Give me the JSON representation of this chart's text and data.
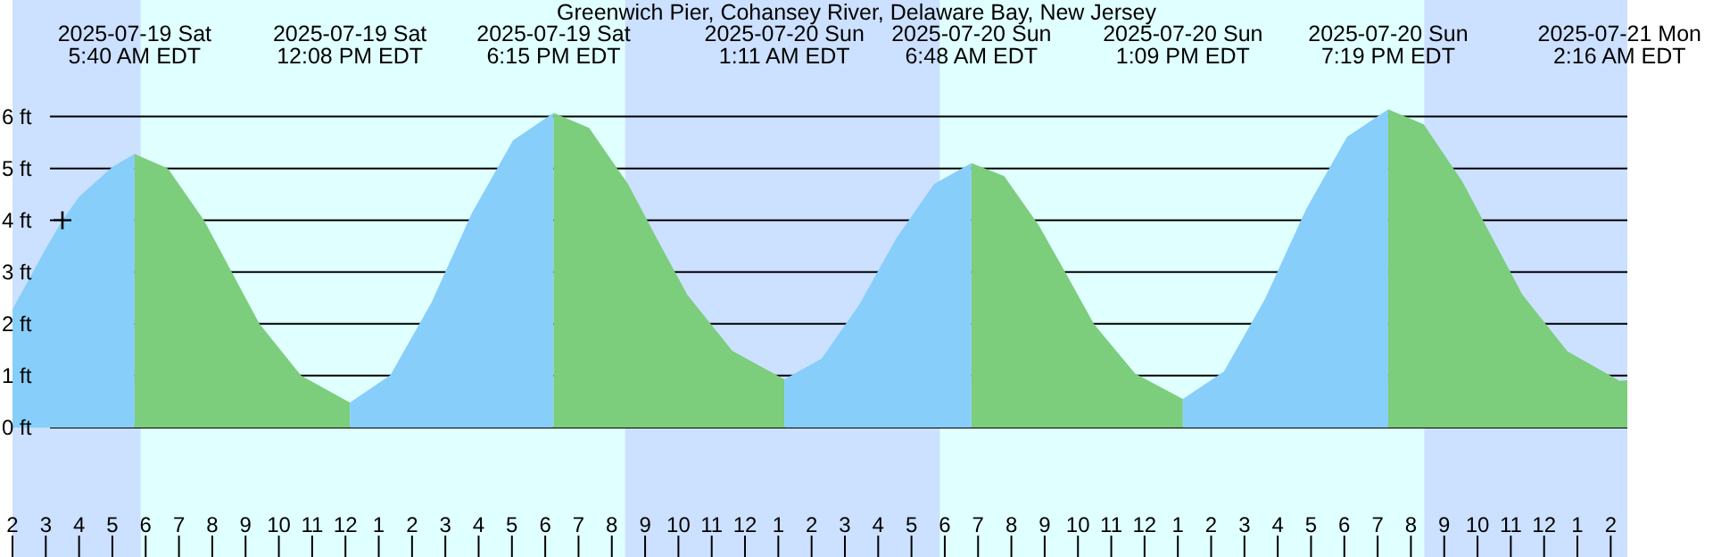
{
  "chart_data": {
    "type": "area",
    "title": "Greenwich Pier, Cohansey River, Delaware Bay, New Jersey",
    "xlim": [
      "2025-07-19T02:00",
      "2025-07-21T02:30"
    ],
    "ylim": [
      -2.5,
      8.25
    ],
    "xticks": [
      {
        "value": "2025-07-19T02:00",
        "label": "2"
      },
      {
        "value": "2025-07-19T03:00",
        "label": "3"
      },
      {
        "value": "2025-07-19T04:00",
        "label": "4"
      },
      {
        "value": "2025-07-19T05:00",
        "label": "5"
      },
      {
        "value": "2025-07-19T06:00",
        "label": "6"
      },
      {
        "value": "2025-07-19T07:00",
        "label": "7"
      },
      {
        "value": "2025-07-19T08:00",
        "label": "8"
      },
      {
        "value": "2025-07-19T09:00",
        "label": "9"
      },
      {
        "value": "2025-07-19T10:00",
        "label": "10"
      },
      {
        "value": "2025-07-19T11:00",
        "label": "11"
      },
      {
        "value": "2025-07-19T12:00",
        "label": "12"
      },
      {
        "value": "2025-07-19T13:00",
        "label": "1"
      },
      {
        "value": "2025-07-19T14:00",
        "label": "2"
      },
      {
        "value": "2025-07-19T15:00",
        "label": "3"
      },
      {
        "value": "2025-07-19T16:00",
        "label": "4"
      },
      {
        "value": "2025-07-19T17:00",
        "label": "5"
      },
      {
        "value": "2025-07-19T18:00",
        "label": "6"
      },
      {
        "value": "2025-07-19T19:00",
        "label": "7"
      },
      {
        "value": "2025-07-19T20:00",
        "label": "8"
      },
      {
        "value": "2025-07-19T21:00",
        "label": "9"
      },
      {
        "value": "2025-07-19T22:00",
        "label": "10"
      },
      {
        "value": "2025-07-19T23:00",
        "label": "11"
      },
      {
        "value": "2025-07-20T00:00",
        "label": "12"
      },
      {
        "value": "2025-07-20T01:00",
        "label": "1"
      },
      {
        "value": "2025-07-20T02:00",
        "label": "2"
      },
      {
        "value": "2025-07-20T03:00",
        "label": "3"
      },
      {
        "value": "2025-07-20T04:00",
        "label": "4"
      },
      {
        "value": "2025-07-20T05:00",
        "label": "5"
      },
      {
        "value": "2025-07-20T06:00",
        "label": "6"
      },
      {
        "value": "2025-07-20T07:00",
        "label": "7"
      },
      {
        "value": "2025-07-20T08:00",
        "label": "8"
      },
      {
        "value": "2025-07-20T09:00",
        "label": "9"
      },
      {
        "value": "2025-07-20T10:00",
        "label": "10"
      },
      {
        "value": "2025-07-20T11:00",
        "label": "11"
      },
      {
        "value": "2025-07-20T12:00",
        "label": "12"
      },
      {
        "value": "2025-07-20T13:00",
        "label": "1"
      },
      {
        "value": "2025-07-20T14:00",
        "label": "2"
      },
      {
        "value": "2025-07-20T15:00",
        "label": "3"
      },
      {
        "value": "2025-07-20T16:00",
        "label": "4"
      },
      {
        "value": "2025-07-20T17:00",
        "label": "5"
      },
      {
        "value": "2025-07-20T18:00",
        "label": "6"
      },
      {
        "value": "2025-07-20T19:00",
        "label": "7"
      },
      {
        "value": "2025-07-20T20:00",
        "label": "8"
      },
      {
        "value": "2025-07-20T21:00",
        "label": "9"
      },
      {
        "value": "2025-07-20T22:00",
        "label": "10"
      },
      {
        "value": "2025-07-20T23:00",
        "label": "11"
      },
      {
        "value": "2025-07-21T00:00",
        "label": "12"
      },
      {
        "value": "2025-07-21T01:00",
        "label": "1"
      },
      {
        "value": "2025-07-21T02:00",
        "label": "2"
      }
    ],
    "yticks": [
      {
        "value": 0,
        "label": "0 ft"
      },
      {
        "value": 1,
        "label": "1 ft"
      },
      {
        "value": 2,
        "label": "2 ft"
      },
      {
        "value": 3,
        "label": "3 ft"
      },
      {
        "value": 4,
        "label": "4 ft"
      },
      {
        "value": 5,
        "label": "5 ft"
      },
      {
        "value": 6,
        "label": "6 ft"
      }
    ],
    "grid": "y",
    "bands": [
      {
        "axis": "x",
        "from": "2025-07-19T02:00",
        "to": "2025-07-19T05:51",
        "color": "#cce0ff"
      },
      {
        "axis": "x",
        "from": "2025-07-19T20:24",
        "to": "2025-07-20T05:51",
        "color": "#cce0ff"
      },
      {
        "axis": "x",
        "from": "2025-07-20T20:24",
        "to": "2025-07-21T02:30",
        "color": "#cce0ff"
      }
    ],
    "series": [
      {
        "color": "#87cefa",
        "x": [
          "2025-07-19T02:00",
          "2025-07-19T03:00",
          "2025-07-19T03:30",
          "2025-07-19T04:00",
          "2025-07-19T05:00",
          "2025-07-19T05:40"
        ],
        "values": [
          2.28,
          3.45,
          4.0,
          4.45,
          5.03,
          5.28
        ]
      },
      {
        "color": "#7ccd7c",
        "x": [
          "2025-07-19T05:40",
          "2025-07-19T06:40",
          "2025-07-19T07:45",
          "2025-07-19T08:35",
          "2025-07-19T09:25",
          "2025-07-19T10:40",
          "2025-07-19T12:08"
        ],
        "values": [
          5.28,
          5.0,
          4.0,
          3.0,
          2.0,
          1.0,
          0.48
        ]
      },
      {
        "color": "#87cefa",
        "x": [
          "2025-07-19T12:08",
          "2025-07-19T13:21",
          "2025-07-19T14:35",
          "2025-07-19T15:48",
          "2025-07-19T17:02",
          "2025-07-19T18:15"
        ],
        "values": [
          0.48,
          1.01,
          2.41,
          4.14,
          5.54,
          6.07
        ]
      },
      {
        "color": "#7ccd7c",
        "x": [
          "2025-07-19T18:15",
          "2025-07-19T19:19",
          "2025-07-19T20:29",
          "2025-07-19T21:22",
          "2025-07-19T22:16",
          "2025-07-19T23:37",
          "2025-07-20T01:11"
        ],
        "values": [
          6.07,
          5.78,
          4.7,
          3.63,
          2.56,
          1.48,
          0.93
        ]
      },
      {
        "color": "#87cefa",
        "x": [
          "2025-07-20T01:11",
          "2025-07-20T02:18",
          "2025-07-20T03:26",
          "2025-07-20T04:33",
          "2025-07-20T05:41",
          "2025-07-20T06:48"
        ],
        "values": [
          0.93,
          1.33,
          2.37,
          3.66,
          4.7,
          5.1
        ]
      },
      {
        "color": "#7ccd7c",
        "x": [
          "2025-07-20T06:48",
          "2025-07-20T07:47",
          "2025-07-20T08:50",
          "2025-07-20T09:40",
          "2025-07-20T10:29",
          "2025-07-20T11:43",
          "2025-07-20T13:09"
        ],
        "values": [
          5.1,
          4.85,
          3.89,
          2.94,
          1.99,
          1.04,
          0.55
        ]
      },
      {
        "color": "#87cefa",
        "x": [
          "2025-07-20T13:09",
          "2025-07-20T14:23",
          "2025-07-20T15:37",
          "2025-07-20T16:51",
          "2025-07-20T18:05",
          "2025-07-20T19:19"
        ],
        "values": [
          0.55,
          1.08,
          2.48,
          4.21,
          5.61,
          6.14
        ]
      },
      {
        "color": "#7ccd7c",
        "x": [
          "2025-07-20T19:19",
          "2025-07-20T20:23",
          "2025-07-20T21:33",
          "2025-07-20T22:27",
          "2025-07-20T23:21",
          "2025-07-21T00:42",
          "2025-07-21T02:16",
          "2025-07-21T02:30"
        ],
        "values": [
          6.14,
          5.85,
          4.74,
          3.65,
          2.56,
          1.47,
          0.9,
          0.91
        ]
      },
      {
        "type": "scatter",
        "marker": "cross",
        "color": "#000000",
        "x": [
          "2025-07-19T03:30"
        ],
        "values": [
          4.0
        ]
      }
    ],
    "x2lim": [
      "2025-07-19T02:00",
      "2025-07-21T02:30"
    ],
    "x2ticks": [
      {
        "value": "2025-07-19T05:40",
        "label": "2025-07-19 Sat\n5:40 AM EDT"
      },
      {
        "value": "2025-07-19T12:08",
        "label": "2025-07-19 Sat\n12:08 PM EDT"
      },
      {
        "value": "2025-07-19T18:15",
        "label": "2025-07-19 Sat\n6:15 PM EDT"
      },
      {
        "value": "2025-07-20T01:11",
        "label": "2025-07-20 Sun\n1:11 AM EDT"
      },
      {
        "value": "2025-07-20T06:48",
        "label": "2025-07-20 Sun\n6:48 AM EDT"
      },
      {
        "value": "2025-07-20T13:09",
        "label": "2025-07-20 Sun\n1:09 PM EDT"
      },
      {
        "value": "2025-07-20T19:19",
        "label": "2025-07-20 Sun\n7:19 PM EDT"
      },
      {
        "value": "2025-07-21T02:16",
        "label": "2025-07-21 Mon\n2:16 AM EDT"
      }
    ]
  }
}
